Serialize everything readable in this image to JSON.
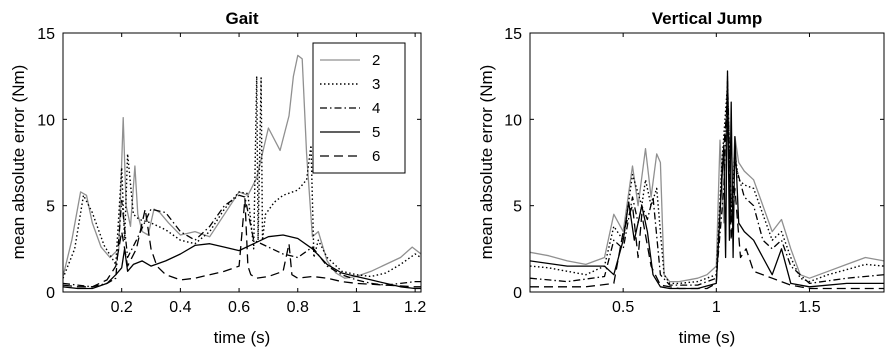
{
  "chart_data": [
    {
      "type": "line",
      "title": "Gait",
      "xlabel": "time (s)",
      "ylabel": "mean absolute error (Nm)",
      "xlim": [
        0,
        1.22
      ],
      "ylim": [
        0,
        15
      ],
      "xticks": [
        0.2,
        0.4,
        0.6,
        0.8,
        1,
        1.2
      ],
      "xtick_labels": [
        "0.2",
        "0.4",
        "0.6",
        "0.8",
        "1",
        "1.2"
      ],
      "yticks": [
        0,
        5,
        10,
        15
      ],
      "ytick_labels": [
        "0",
        "5",
        "10",
        "15"
      ],
      "grid": false,
      "legend": "top-right",
      "series": [
        {
          "name": "2",
          "style": "solid",
          "color": "#909090",
          "x": [
            0,
            0.03,
            0.06,
            0.08,
            0.1,
            0.13,
            0.16,
            0.19,
            0.205,
            0.215,
            0.23,
            0.245,
            0.255,
            0.27,
            0.29,
            0.31,
            0.33,
            0.36,
            0.4,
            0.45,
            0.5,
            0.55,
            0.6,
            0.63,
            0.66,
            0.7,
            0.74,
            0.77,
            0.785,
            0.8,
            0.815,
            0.83,
            0.85,
            0.87,
            0.9,
            0.93,
            0.96,
            1.0,
            1.05,
            1.1,
            1.15,
            1.19,
            1.22
          ],
          "y": [
            0.9,
            3.0,
            5.8,
            5.6,
            4.0,
            2.6,
            2.0,
            2.5,
            10.1,
            5.0,
            3.8,
            7.3,
            4.5,
            3.5,
            3.3,
            4.8,
            4.6,
            4.0,
            3.3,
            3.5,
            3.2,
            4.5,
            5.8,
            5.6,
            6.6,
            9.5,
            8.2,
            10.2,
            12.5,
            13.7,
            13.5,
            8.0,
            3.2,
            3.5,
            1.8,
            1.1,
            0.8,
            0.9,
            1.2,
            1.6,
            2.0,
            2.6,
            2.2
          ]
        },
        {
          "name": "3",
          "style": "dotted",
          "color": "#000000",
          "x": [
            0,
            0.04,
            0.07,
            0.1,
            0.14,
            0.18,
            0.2,
            0.21,
            0.22,
            0.24,
            0.26,
            0.3,
            0.35,
            0.4,
            0.45,
            0.5,
            0.55,
            0.6,
            0.63,
            0.65,
            0.66,
            0.665,
            0.675,
            0.68,
            0.69,
            0.72,
            0.75,
            0.8,
            0.83,
            0.845,
            0.855,
            0.87,
            0.9,
            0.95,
            1.0,
            1.05,
            1.1,
            1.15,
            1.2,
            1.22
          ],
          "y": [
            0.8,
            2.5,
            5.6,
            4.6,
            2.7,
            1.6,
            7.2,
            3.0,
            8.0,
            4.5,
            4.2,
            4.0,
            3.6,
            3.0,
            2.8,
            3.5,
            4.8,
            5.8,
            5.7,
            2.5,
            12.5,
            3.0,
            12.4,
            3.0,
            4.5,
            5.2,
            5.6,
            5.9,
            6.5,
            8.5,
            2.0,
            3.0,
            2.0,
            1.2,
            1.0,
            0.9,
            1.1,
            1.6,
            2.2,
            2.0
          ]
        },
        {
          "name": "4",
          "style": "dashdot",
          "color": "#000000",
          "x": [
            0,
            0.05,
            0.1,
            0.15,
            0.18,
            0.2,
            0.22,
            0.25,
            0.3,
            0.35,
            0.4,
            0.45,
            0.5,
            0.55,
            0.6,
            0.62,
            0.65,
            0.7,
            0.75,
            0.8,
            0.85,
            0.9,
            0.95,
            1.0,
            1.05,
            1.1,
            1.15,
            1.2,
            1.22
          ],
          "y": [
            0.5,
            0.4,
            0.3,
            0.5,
            0.8,
            5.3,
            2.0,
            3.0,
            4.8,
            4.6,
            3.5,
            3.0,
            3.8,
            5.0,
            5.6,
            5.5,
            3.0,
            2.6,
            2.2,
            2.0,
            2.6,
            1.5,
            1.0,
            0.7,
            0.5,
            0.4,
            0.5,
            0.6,
            0.6
          ]
        },
        {
          "name": "5",
          "style": "solid",
          "color": "#000000",
          "x": [
            0,
            0.05,
            0.1,
            0.15,
            0.18,
            0.2,
            0.21,
            0.22,
            0.24,
            0.27,
            0.3,
            0.35,
            0.4,
            0.45,
            0.5,
            0.55,
            0.6,
            0.65,
            0.7,
            0.75,
            0.8,
            0.85,
            0.9,
            0.95,
            1.0,
            1.05,
            1.1,
            1.15,
            1.2,
            1.22
          ],
          "y": [
            0.3,
            0.2,
            0.2,
            0.5,
            1.0,
            1.4,
            2.5,
            1.2,
            1.6,
            1.8,
            1.5,
            1.8,
            2.2,
            2.7,
            2.8,
            2.6,
            2.4,
            2.8,
            3.2,
            3.3,
            3.1,
            2.5,
            1.6,
            1.1,
            0.9,
            0.7,
            0.5,
            0.3,
            0.2,
            0.2
          ]
        },
        {
          "name": "6",
          "style": "dashed",
          "color": "#000000",
          "x": [
            0,
            0.05,
            0.1,
            0.15,
            0.18,
            0.2,
            0.22,
            0.25,
            0.28,
            0.3,
            0.32,
            0.35,
            0.4,
            0.45,
            0.5,
            0.55,
            0.6,
            0.62,
            0.63,
            0.64,
            0.66,
            0.7,
            0.75,
            0.77,
            0.78,
            0.8,
            0.85,
            0.9,
            0.95,
            1.0,
            1.1,
            1.2,
            1.22
          ],
          "y": [
            0.4,
            0.3,
            0.3,
            0.7,
            1.5,
            3.5,
            1.5,
            2.5,
            4.8,
            2.5,
            1.5,
            1.0,
            0.7,
            0.8,
            1.0,
            1.2,
            1.5,
            5.4,
            1.5,
            1.0,
            0.8,
            0.9,
            1.2,
            2.8,
            1.0,
            0.8,
            0.9,
            0.8,
            0.6,
            0.5,
            0.4,
            0.3,
            0.3
          ]
        }
      ]
    },
    {
      "type": "line",
      "title": "Vertical Jump",
      "xlabel": "time (s)",
      "ylabel": "mean absolute error (Nm)",
      "xlim": [
        0,
        1.9
      ],
      "ylim": [
        0,
        15
      ],
      "xticks": [
        0.5,
        1,
        1.5
      ],
      "xtick_labels": [
        "0.5",
        "1",
        "1.5"
      ],
      "yticks": [
        0,
        5,
        10,
        15
      ],
      "ytick_labels": [
        "0",
        "5",
        "10",
        "15"
      ],
      "grid": false,
      "series": [
        {
          "name": "2",
          "style": "solid",
          "color": "#909090",
          "x": [
            0,
            0.1,
            0.2,
            0.3,
            0.4,
            0.45,
            0.5,
            0.55,
            0.58,
            0.62,
            0.65,
            0.68,
            0.7,
            0.72,
            0.75,
            0.8,
            0.9,
            0.95,
            1.0,
            1.02,
            1.04,
            1.06,
            1.08,
            1.1,
            1.12,
            1.15,
            1.2,
            1.25,
            1.3,
            1.35,
            1.4,
            1.45,
            1.5,
            1.6,
            1.7,
            1.8,
            1.9
          ],
          "y": [
            2.3,
            2.1,
            1.8,
            1.6,
            2.0,
            4.5,
            3.5,
            7.3,
            5.0,
            8.3,
            5.5,
            8.0,
            7.5,
            1.0,
            0.6,
            0.6,
            0.8,
            1.0,
            1.5,
            8.8,
            4.0,
            12.5,
            5.0,
            9.0,
            7.5,
            7.0,
            6.5,
            5.0,
            3.5,
            4.2,
            2.5,
            1.0,
            0.8,
            1.2,
            1.6,
            2.0,
            1.8
          ]
        },
        {
          "name": "3",
          "style": "dotted",
          "color": "#000000",
          "x": [
            0,
            0.1,
            0.2,
            0.3,
            0.4,
            0.45,
            0.5,
            0.55,
            0.6,
            0.62,
            0.65,
            0.68,
            0.72,
            0.75,
            0.8,
            0.9,
            1.0,
            1.03,
            1.06,
            1.08,
            1.1,
            1.12,
            1.15,
            1.2,
            1.25,
            1.3,
            1.35,
            1.4,
            1.45,
            1.5,
            1.6,
            1.7,
            1.8,
            1.9
          ],
          "y": [
            1.5,
            1.4,
            1.2,
            1.0,
            1.5,
            3.8,
            3.0,
            6.8,
            5.0,
            6.5,
            5.0,
            6.0,
            1.0,
            0.5,
            0.5,
            0.6,
            1.0,
            7.5,
            12.0,
            4.5,
            8.0,
            6.5,
            6.2,
            6.0,
            4.5,
            3.0,
            3.5,
            2.0,
            0.8,
            0.6,
            1.0,
            1.3,
            1.6,
            1.5
          ]
        },
        {
          "name": "4",
          "style": "dashdot",
          "color": "#000000",
          "x": [
            0,
            0.2,
            0.4,
            0.45,
            0.5,
            0.55,
            0.58,
            0.6,
            0.63,
            0.66,
            0.7,
            0.75,
            0.9,
            1.0,
            1.04,
            1.06,
            1.08,
            1.1,
            1.15,
            1.2,
            1.25,
            1.3,
            1.35,
            1.4,
            1.5,
            1.7,
            1.9
          ],
          "y": [
            0.8,
            0.6,
            0.9,
            3.0,
            2.5,
            5.5,
            4.0,
            5.0,
            4.2,
            5.5,
            1.0,
            0.4,
            0.4,
            0.8,
            6.0,
            12.2,
            4.0,
            7.5,
            5.5,
            5.0,
            3.0,
            2.5,
            3.0,
            1.5,
            0.5,
            0.8,
            1.0
          ]
        },
        {
          "name": "5",
          "style": "solid",
          "color": "#000000",
          "x": [
            0,
            0.2,
            0.4,
            0.45,
            0.5,
            0.53,
            0.56,
            0.6,
            0.63,
            0.66,
            0.7,
            0.75,
            0.9,
            1.0,
            1.02,
            1.04,
            1.05,
            1.06,
            1.07,
            1.08,
            1.09,
            1.1,
            1.12,
            1.15,
            1.2,
            1.25,
            1.3,
            1.35,
            1.4,
            1.5,
            1.7,
            1.9
          ],
          "y": [
            1.8,
            1.5,
            1.5,
            1.0,
            3.0,
            5.2,
            3.0,
            5.0,
            3.5,
            1.0,
            0.3,
            0.2,
            0.2,
            0.5,
            4.5,
            8.5,
            2.0,
            12.8,
            3.0,
            11.0,
            2.0,
            9.0,
            4.0,
            3.5,
            3.0,
            2.0,
            1.0,
            2.5,
            0.5,
            0.3,
            0.5,
            0.5
          ]
        },
        {
          "name": "6",
          "style": "dashed",
          "color": "#000000",
          "x": [
            0,
            0.3,
            0.45,
            0.5,
            0.55,
            0.58,
            0.6,
            0.65,
            0.7,
            0.8,
            0.95,
            1.0,
            1.03,
            1.06,
            1.08,
            1.1,
            1.13,
            1.16,
            1.2,
            1.3,
            1.4,
            1.5,
            1.7,
            1.9
          ],
          "y": [
            0.3,
            0.3,
            0.5,
            3.5,
            5.0,
            2.0,
            4.5,
            1.5,
            0.4,
            0.2,
            0.2,
            0.5,
            7.0,
            11.0,
            3.0,
            6.0,
            2.0,
            2.5,
            1.2,
            0.8,
            0.4,
            0.2,
            0.2,
            0.2
          ]
        }
      ]
    }
  ]
}
